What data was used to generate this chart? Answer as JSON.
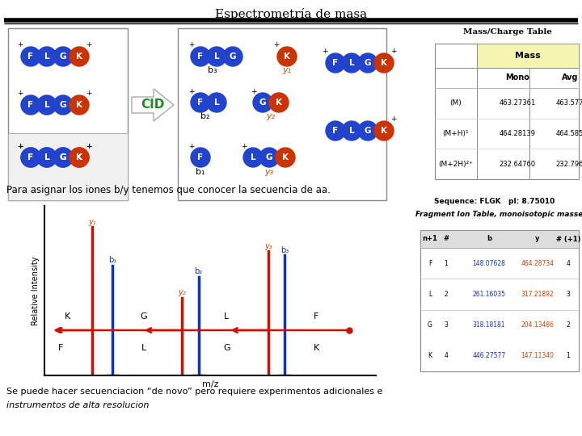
{
  "title": "Espectrometría de masa",
  "title_fontsize": 11,
  "bg_color": "#ffffff",
  "blue_circle_color": "#2244cc",
  "orange_circle_color": "#cc3300",
  "cid_color": "#228822",
  "amino_acids": [
    "F",
    "L",
    "G",
    "K"
  ],
  "mass_table_title": "Mass/Charge Table",
  "mono_vals": [
    "463.27361",
    "464.28139",
    "232.64760"
  ],
  "avg_vals": [
    "463.577",
    "464.585",
    "232.796"
  ],
  "sequence_label": "Sequence: FLGK   pI: 8.75010",
  "frag_table_title": "Fragment Ion Table, monoisotopic masses",
  "frag_cols": [
    "n+1",
    "#",
    "b",
    "y",
    "# (+1)"
  ],
  "frag_rows": [
    [
      "F",
      "1",
      "148.07628",
      "464.28734",
      "4"
    ],
    [
      "L",
      "2",
      "261.16035",
      "317.21892",
      "3"
    ],
    [
      "G",
      "3",
      "318.18181",
      "204.13486",
      "2"
    ],
    [
      "K",
      "4",
      "446.27577",
      "147.11340",
      "1"
    ]
  ],
  "spectrum_ylabel": "Relative Intensity",
  "spectrum_xlabel": "m/z",
  "bottom_text1": "Para asignar los iones b/y tenemos que conocer la secuencia de aa.",
  "bottom_text2": "Se puede hacer secuenciacion “de novo” pero requiere experimentos adicionales e",
  "bottom_text3": "instrumentos de alta resolucion",
  "blue_bar_color": "#1133bb",
  "red_line_color": "#cc1100",
  "orange_label_color": "#cc4400"
}
